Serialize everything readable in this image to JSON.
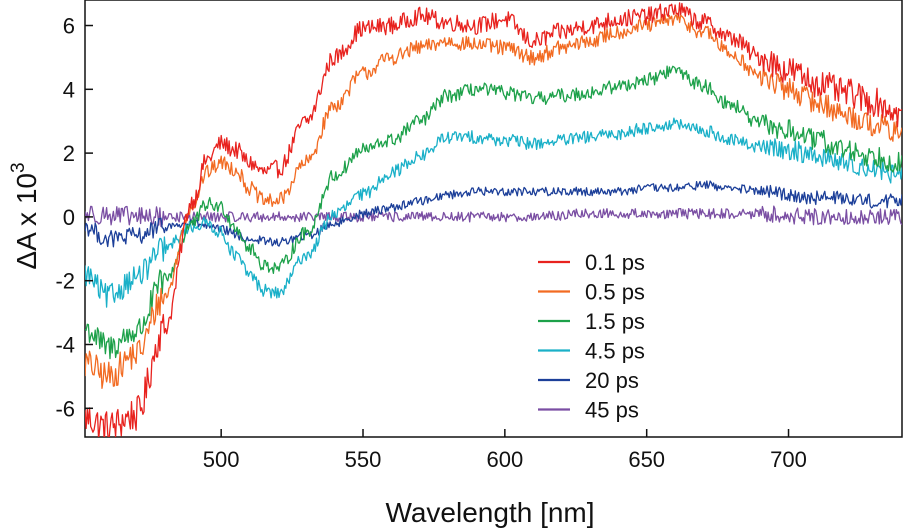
{
  "chart_data": {
    "type": "line",
    "title": "",
    "xlabel": "Wavelength [nm]",
    "ylabel_main": "ΔA x 10",
    "ylabel_exponent": "3",
    "xlim": [
      452,
      740
    ],
    "ylim": [
      -6.9,
      6.8
    ],
    "x_ticks": [
      500,
      550,
      600,
      650,
      700
    ],
    "y_ticks": [
      -6,
      -4,
      -2,
      0,
      2,
      4,
      6
    ],
    "grid": false,
    "legend_position": "center-bottom",
    "series": [
      {
        "name": "0.1 ps",
        "color": "#e8221e",
        "noise": 0.28,
        "x": [
          452,
          460,
          470,
          480,
          490,
          495,
          500,
          505,
          510,
          515,
          520,
          530,
          540,
          550,
          560,
          570,
          580,
          590,
          600,
          610,
          620,
          630,
          640,
          650,
          660,
          670,
          680,
          690,
          700,
          710,
          720,
          730,
          740
        ],
        "y": [
          -6.3,
          -6.6,
          -6.2,
          -3.5,
          0.5,
          1.8,
          2.3,
          2.1,
          1.7,
          1.4,
          1.5,
          3.0,
          5.0,
          5.9,
          6.0,
          6.3,
          6.1,
          6.0,
          6.2,
          5.5,
          5.8,
          6.0,
          6.2,
          6.3,
          6.5,
          6.1,
          5.6,
          5.0,
          4.6,
          4.2,
          3.9,
          3.6,
          3.2
        ]
      },
      {
        "name": "0.5 ps",
        "color": "#f26b22",
        "noise": 0.24,
        "x": [
          452,
          460,
          470,
          480,
          490,
          495,
          500,
          505,
          510,
          515,
          520,
          530,
          540,
          550,
          560,
          570,
          580,
          590,
          600,
          610,
          620,
          630,
          640,
          650,
          660,
          670,
          680,
          690,
          700,
          710,
          720,
          730,
          740
        ],
        "y": [
          -4.6,
          -5.0,
          -4.3,
          -2.5,
          0.4,
          1.4,
          1.7,
          1.5,
          0.9,
          0.5,
          0.5,
          1.7,
          3.5,
          4.5,
          5.0,
          5.3,
          5.5,
          5.4,
          5.3,
          5.0,
          5.3,
          5.5,
          5.8,
          6.0,
          6.2,
          5.8,
          5.1,
          4.4,
          4.0,
          3.6,
          3.2,
          2.9,
          2.6
        ]
      },
      {
        "name": "1.5 ps",
        "color": "#1da14a",
        "noise": 0.22,
        "x": [
          452,
          460,
          470,
          480,
          490,
          495,
          500,
          505,
          510,
          515,
          520,
          530,
          540,
          550,
          560,
          570,
          580,
          590,
          600,
          610,
          620,
          630,
          640,
          650,
          660,
          670,
          680,
          690,
          700,
          710,
          720,
          730,
          740
        ],
        "y": [
          -3.5,
          -4.1,
          -3.6,
          -2.0,
          -0.2,
          0.4,
          0.3,
          -0.3,
          -1.0,
          -1.5,
          -1.6,
          -0.5,
          1.3,
          2.1,
          2.4,
          3.0,
          3.8,
          4.0,
          3.9,
          3.7,
          3.8,
          3.9,
          4.1,
          4.3,
          4.6,
          4.1,
          3.5,
          2.9,
          2.7,
          2.4,
          2.1,
          1.9,
          1.7
        ]
      },
      {
        "name": "4.5 ps",
        "color": "#1ab0c8",
        "noise": 0.2,
        "x": [
          452,
          460,
          470,
          480,
          490,
          495,
          500,
          505,
          510,
          515,
          520,
          530,
          540,
          550,
          560,
          570,
          580,
          590,
          600,
          610,
          620,
          630,
          640,
          650,
          660,
          670,
          680,
          690,
          700,
          710,
          720,
          730,
          740
        ],
        "y": [
          -1.8,
          -2.5,
          -1.9,
          -1.0,
          -0.3,
          -0.2,
          -0.5,
          -1.2,
          -1.8,
          -2.3,
          -2.4,
          -1.2,
          0.1,
          0.7,
          1.4,
          1.9,
          2.5,
          2.5,
          2.4,
          2.3,
          2.4,
          2.5,
          2.6,
          2.8,
          2.9,
          2.7,
          2.4,
          2.2,
          2.1,
          1.9,
          1.7,
          1.5,
          1.3
        ]
      },
      {
        "name": "20 ps",
        "color": "#1c3f99",
        "noise": 0.14,
        "x": [
          452,
          460,
          470,
          480,
          490,
          500,
          510,
          520,
          530,
          540,
          550,
          560,
          570,
          580,
          590,
          600,
          610,
          620,
          630,
          640,
          650,
          660,
          670,
          680,
          690,
          700,
          710,
          720,
          730,
          740
        ],
        "y": [
          -0.3,
          -0.7,
          -0.6,
          -0.3,
          -0.2,
          -0.4,
          -0.7,
          -0.8,
          -0.6,
          -0.2,
          0.1,
          0.3,
          0.5,
          0.7,
          0.8,
          0.8,
          0.8,
          0.8,
          0.8,
          0.8,
          0.9,
          0.9,
          1.0,
          0.9,
          0.8,
          0.7,
          0.6,
          0.6,
          0.5,
          0.5
        ]
      },
      {
        "name": "45 ps",
        "color": "#7a4ea3",
        "noise": 0.16,
        "x": [
          452,
          470,
          490,
          510,
          530,
          550,
          570,
          590,
          610,
          630,
          650,
          670,
          690,
          710,
          740
        ],
        "y": [
          0.1,
          0.0,
          0.0,
          0.0,
          0.0,
          0.0,
          0.0,
          0.0,
          0.0,
          0.1,
          0.1,
          0.1,
          0.1,
          0.0,
          0.0
        ]
      }
    ]
  }
}
